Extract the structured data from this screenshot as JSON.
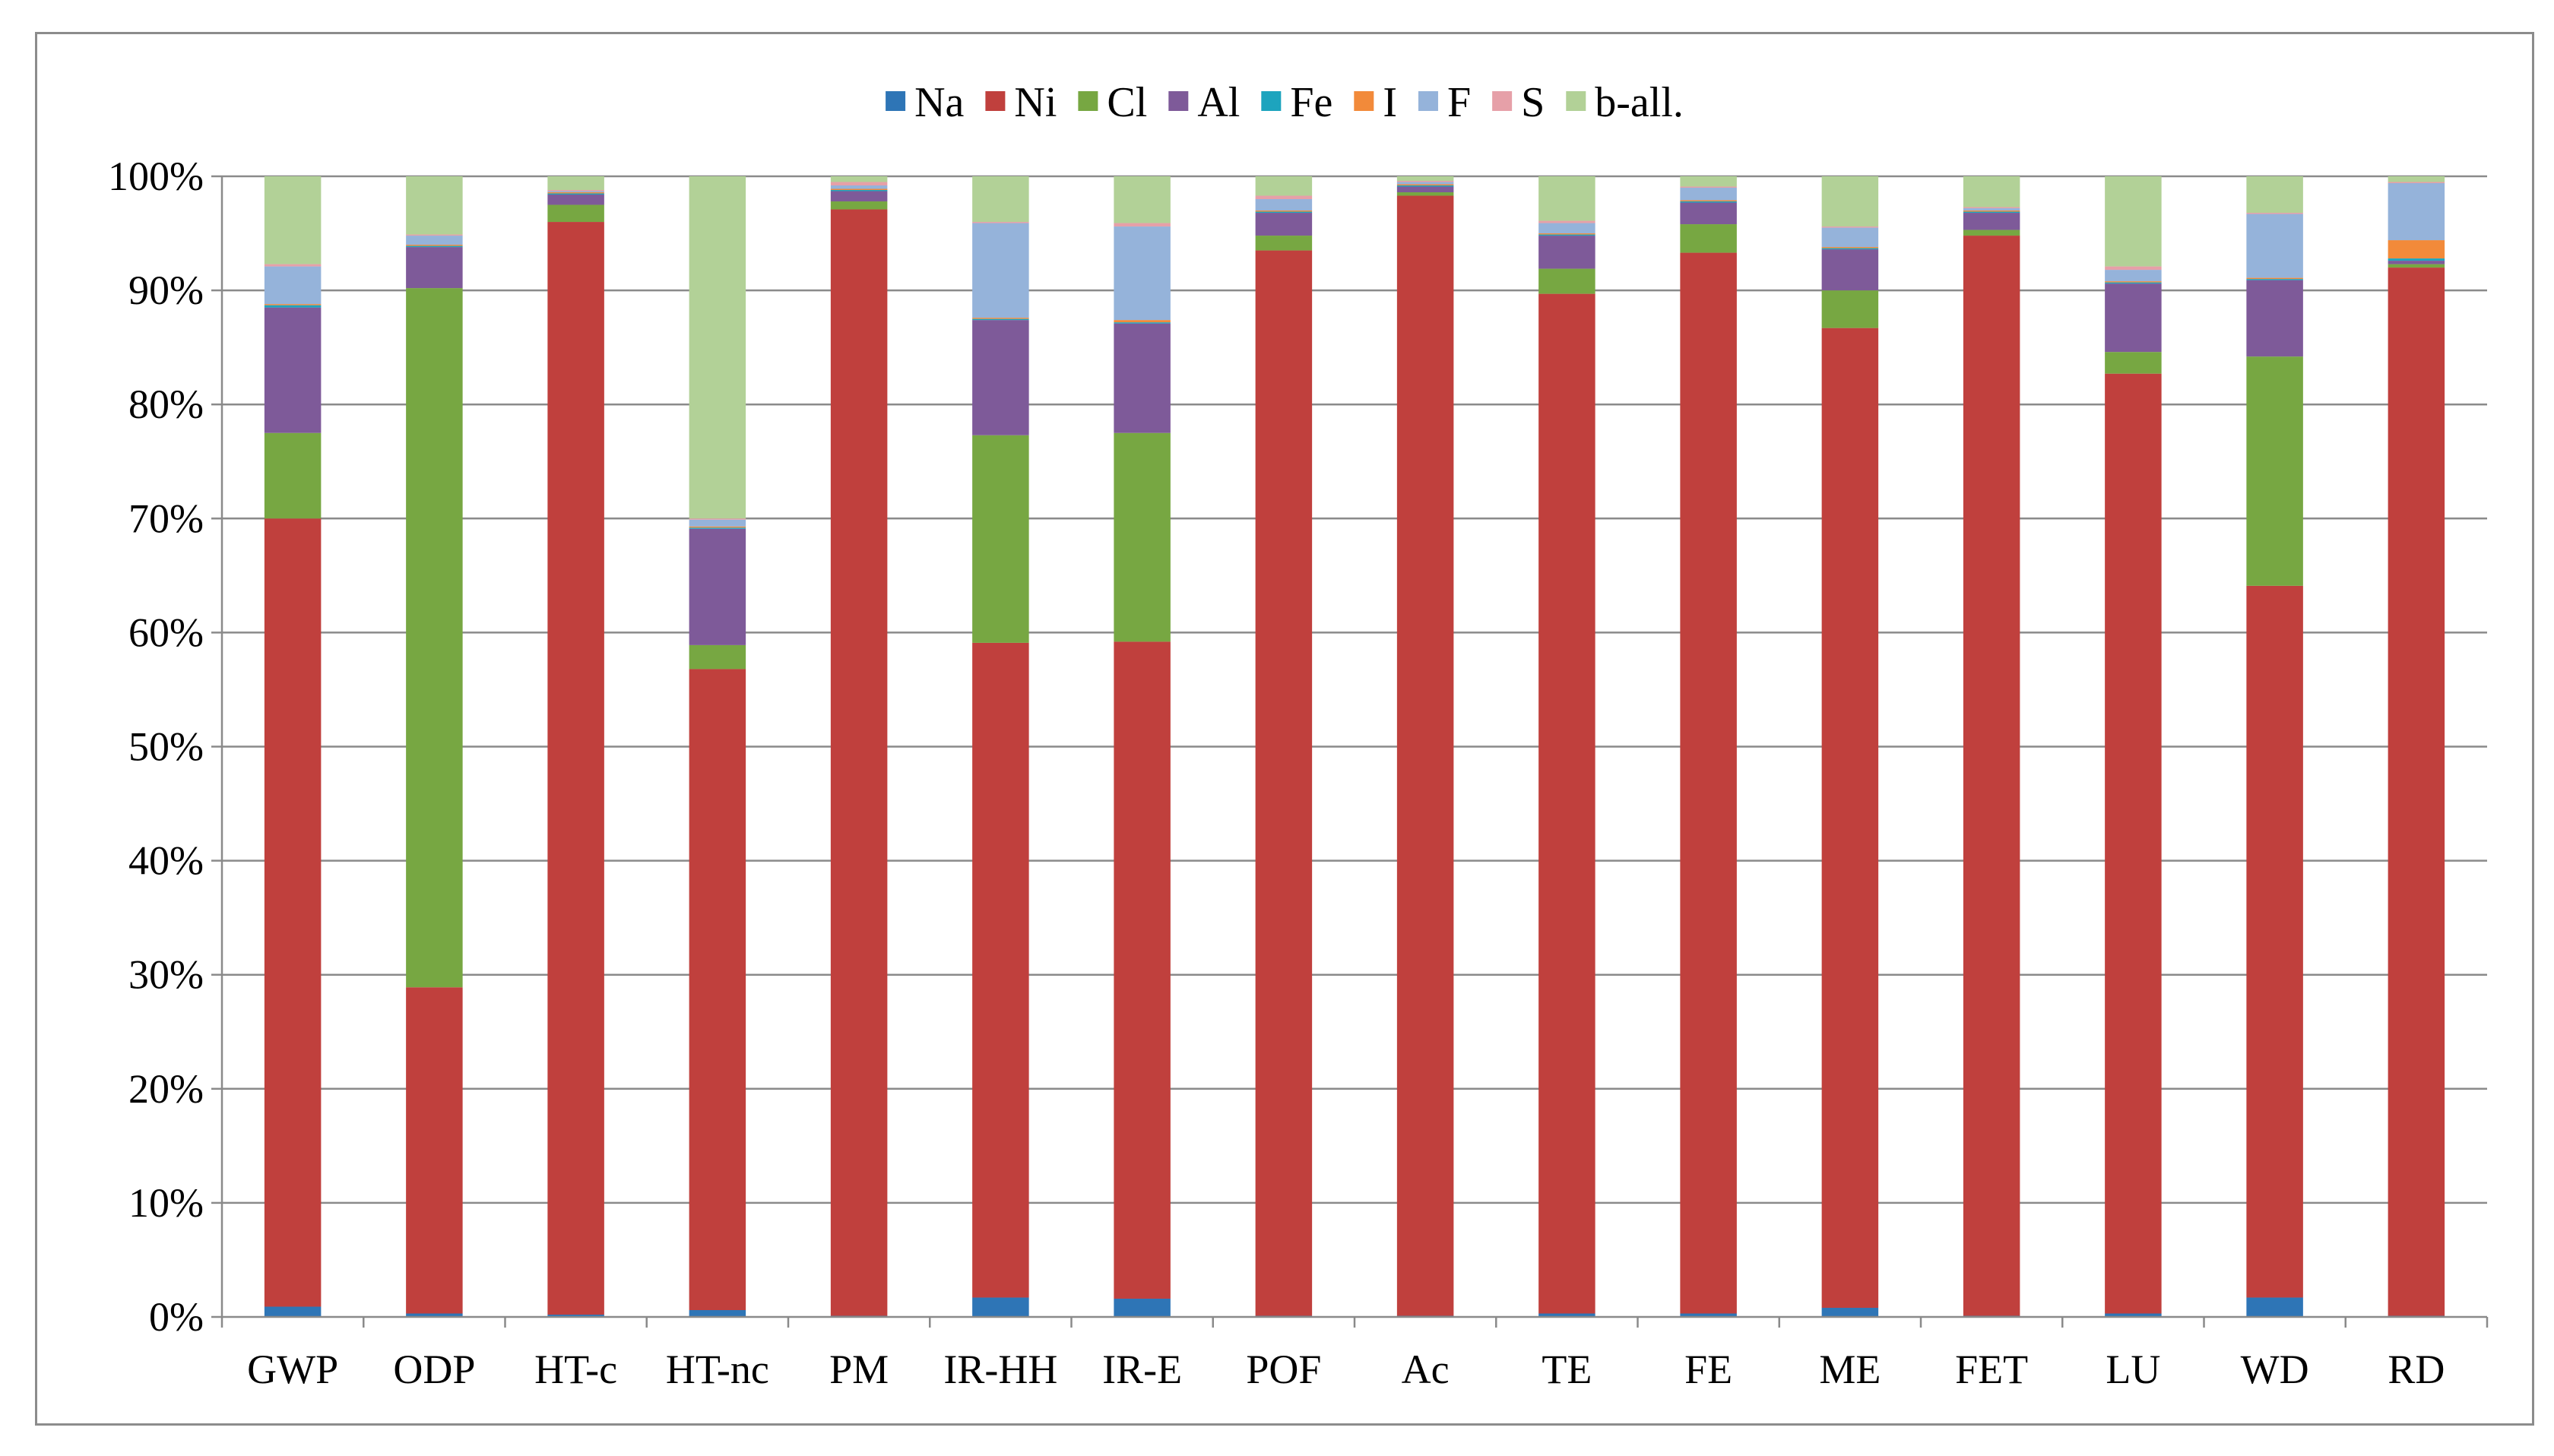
{
  "chart_data": {
    "type": "bar",
    "stacked": true,
    "normalized": true,
    "title": "",
    "xlabel": "",
    "ylabel": "",
    "ylim": [
      0,
      100
    ],
    "yticks": [
      0,
      10,
      20,
      30,
      40,
      50,
      60,
      70,
      80,
      90,
      100
    ],
    "ytick_labels": [
      "0%",
      "10%",
      "20%",
      "30%",
      "40%",
      "50%",
      "60%",
      "70%",
      "80%",
      "90%",
      "100%"
    ],
    "grid": true,
    "legend_position": "top-center",
    "categories": [
      "GWP",
      "ODP",
      "HT-c",
      "HT-nc",
      "PM",
      "IR-HH",
      "IR-E",
      "POF",
      "Ac",
      "TE",
      "FE",
      "ME",
      "FET",
      "LU",
      "WD",
      "RD"
    ],
    "series": [
      {
        "name": "Na",
        "color": "#2E75B6",
        "values": [
          0.9,
          0.3,
          0.2,
          0.6,
          0.1,
          1.7,
          1.6,
          0.1,
          0.1,
          0.3,
          0.3,
          0.8,
          0.1,
          0.3,
          1.7,
          0.1
        ]
      },
      {
        "name": "Ni",
        "color": "#C0403D",
        "values": [
          69.1,
          28.6,
          95.8,
          56.2,
          97.0,
          57.4,
          57.6,
          93.4,
          98.2,
          89.4,
          93.0,
          85.9,
          94.7,
          82.4,
          62.4,
          91.9
        ]
      },
      {
        "name": "Cl",
        "color": "#77A742",
        "values": [
          7.5,
          61.3,
          1.5,
          2.1,
          0.7,
          18.2,
          18.3,
          1.3,
          0.3,
          2.2,
          2.5,
          3.3,
          0.5,
          1.9,
          20.1,
          0.3
        ]
      },
      {
        "name": "Al",
        "color": "#7E5A99",
        "values": [
          11.0,
          3.6,
          0.9,
          10.2,
          0.9,
          10.1,
          9.6,
          2.0,
          0.5,
          2.9,
          1.9,
          3.6,
          1.5,
          6.0,
          6.7,
          0.3
        ]
      },
      {
        "name": "Fe",
        "color": "#1DA4BE",
        "values": [
          0.2,
          0.1,
          0.1,
          0.1,
          0.1,
          0.1,
          0.1,
          0.1,
          0.1,
          0.1,
          0.1,
          0.1,
          0.1,
          0.1,
          0.1,
          0.2
        ]
      },
      {
        "name": "I",
        "color": "#F28A3A",
        "values": [
          0.1,
          0.1,
          0.1,
          0.1,
          0.1,
          0.1,
          0.2,
          0.1,
          0.1,
          0.1,
          0.1,
          0.1,
          0.1,
          0.1,
          0.1,
          1.6
        ]
      },
      {
        "name": "F",
        "color": "#95B3DA",
        "values": [
          3.3,
          0.8,
          0.1,
          0.6,
          0.3,
          8.3,
          8.2,
          1.0,
          0.2,
          0.9,
          1.1,
          1.7,
          0.2,
          1.0,
          5.6,
          5.0
        ]
      },
      {
        "name": "S",
        "color": "#E6A0A8",
        "values": [
          0.2,
          0.1,
          0.1,
          0.1,
          0.3,
          0.1,
          0.3,
          0.3,
          0.1,
          0.2,
          0.1,
          0.1,
          0.1,
          0.3,
          0.1,
          0.1
        ]
      },
      {
        "name": "b-all.",
        "color": "#B2D197",
        "values": [
          7.7,
          5.1,
          1.2,
          30.0,
          0.5,
          4.0,
          4.1,
          1.7,
          0.4,
          3.9,
          0.9,
          4.4,
          2.7,
          7.9,
          3.2,
          0.5
        ]
      }
    ]
  }
}
